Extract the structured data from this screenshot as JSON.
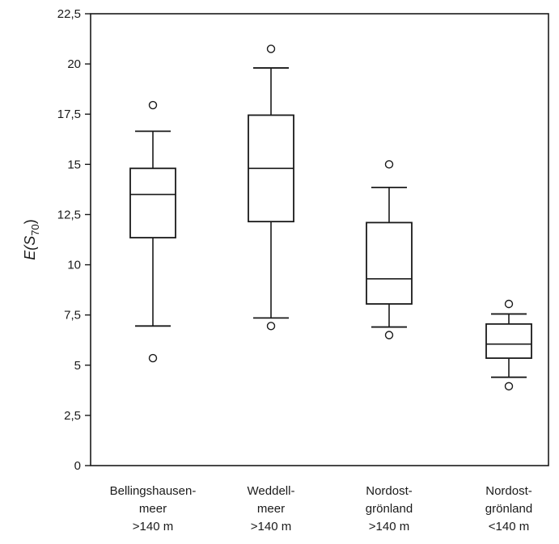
{
  "chart_data": {
    "type": "boxplot",
    "title": "",
    "xlabel": "",
    "ylabel": {
      "main": "E(S",
      "sub": "70",
      "close": ")"
    },
    "ylim": [
      0,
      22.5
    ],
    "yticks": [
      0,
      2.5,
      5,
      7.5,
      10,
      12.5,
      15,
      17.5,
      20,
      22.5
    ],
    "ytick_labels": [
      "0",
      "2,5",
      "5",
      "7,5",
      "10",
      "12,5",
      "15",
      "17,5",
      "20",
      "22,5"
    ],
    "grid": false,
    "legend": "none",
    "categories": [
      {
        "lines": [
          "Bellingshausen-",
          "meer",
          ">140 m"
        ]
      },
      {
        "lines": [
          "Weddell-",
          "meer",
          ">140 m"
        ]
      },
      {
        "lines": [
          "Nordost-",
          "grönland",
          ">140 m"
        ]
      },
      {
        "lines": [
          "Nordost-",
          "grönland",
          "<140 m"
        ]
      }
    ],
    "boxes": [
      {
        "whisker_low": 6.95,
        "q1": 11.35,
        "median": 13.5,
        "q3": 14.8,
        "whisker_high": 16.65,
        "outliers": [
          17.95,
          5.35
        ]
      },
      {
        "whisker_low": 7.35,
        "q1": 12.15,
        "median": 14.8,
        "q3": 17.45,
        "whisker_high": 19.8,
        "outliers": [
          20.75,
          6.95
        ]
      },
      {
        "whisker_low": 6.9,
        "q1": 8.05,
        "median": 9.3,
        "q3": 12.1,
        "whisker_high": 13.85,
        "outliers": [
          15.0,
          6.5
        ]
      },
      {
        "whisker_low": 4.4,
        "q1": 5.35,
        "median": 6.05,
        "q3": 7.05,
        "whisker_high": 7.55,
        "outliers": [
          8.05,
          3.95
        ]
      }
    ],
    "colors": {
      "stroke": "#1a1a1a",
      "fill": "#ffffff"
    }
  }
}
